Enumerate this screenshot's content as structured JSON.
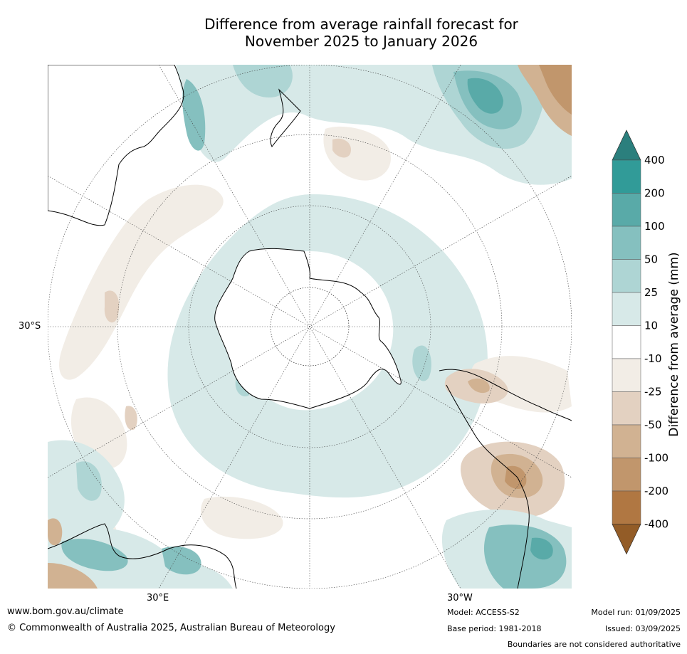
{
  "title": {
    "line1": "Difference from average rainfall forecast for",
    "line2": "November 2025 to January 2026"
  },
  "map": {
    "projection": "south-polar-stereographic",
    "lat_label": "30°S",
    "lon_labels": [
      "30°E",
      "30°W"
    ],
    "ocean_color": "#ffffff",
    "coastline_color": "#000000"
  },
  "colorbar": {
    "title": "Difference from average (mm)",
    "labels": [
      "400",
      "200",
      "100",
      "50",
      "25",
      "10",
      "-10",
      "-25",
      "-50",
      "-100",
      "-200",
      "-400"
    ],
    "colors": [
      "#2b7f7d",
      "#319b98",
      "#59aaa8",
      "#85c0bf",
      "#aed5d4",
      "#d7e9e8",
      "#ffffff",
      "#f2ede6",
      "#e3d1c1",
      "#d1b292",
      "#c1966c",
      "#b07742",
      "#935c27"
    ]
  },
  "footer": {
    "url": "www.bom.gov.au/climate",
    "copyright": "© Commonwealth of Australia 2025, Australian Bureau of Meteorology",
    "model": "Model: ACCESS-S2",
    "base_period": "Base period: 1981-2018",
    "model_run": "Model run: 01/09/2025",
    "issued": "Issued: 03/09/2025",
    "disclaimer": "Boundaries are not considered authoritative"
  }
}
